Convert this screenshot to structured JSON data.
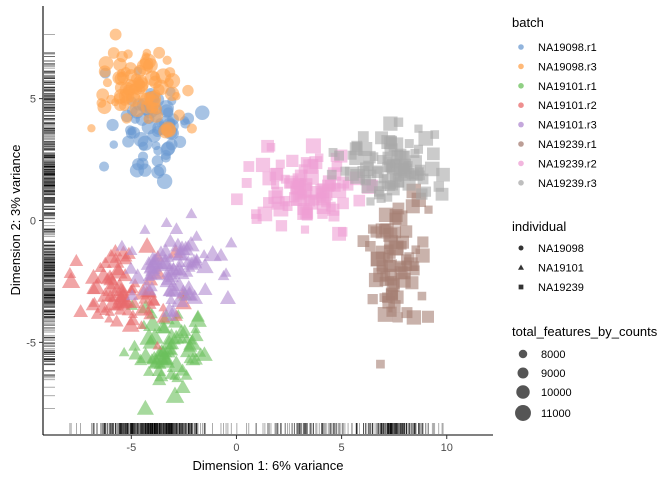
{
  "chart_data": {
    "type": "scatter",
    "xlabel": "Dimension 1: 6% variance",
    "ylabel": "Dimension 2: 3% variance",
    "xlim": [
      -9.2,
      12.2
    ],
    "ylim": [
      -8.8,
      8.8
    ],
    "xticks": [
      -5,
      0,
      5,
      10
    ],
    "yticks": [
      -5,
      0,
      5
    ],
    "rug": true,
    "legend_position": "right",
    "legends": {
      "batch": {
        "title": "batch",
        "entries": [
          {
            "label": "NA19098.r1",
            "color": "#6C9BD2"
          },
          {
            "label": "NA19098.r3",
            "color": "#FFA24B"
          },
          {
            "label": "NA19101.r1",
            "color": "#6BC05B"
          },
          {
            "label": "NA19101.r2",
            "color": "#E8696A"
          },
          {
            "label": "NA19101.r3",
            "color": "#B08AD0"
          },
          {
            "label": "NA19239.r1",
            "color": "#A57E73"
          },
          {
            "label": "NA19239.r2",
            "color": "#EE9ED3"
          },
          {
            "label": "NA19239.r3",
            "color": "#A8A8A8"
          }
        ]
      },
      "individual": {
        "title": "individual",
        "entries": [
          {
            "label": "NA19098",
            "shape": "circle"
          },
          {
            "label": "NA19101",
            "shape": "triangle"
          },
          {
            "label": "NA19239",
            "shape": "square"
          }
        ]
      },
      "size": {
        "title": "total_features_by_counts",
        "entries": [
          {
            "label": "8000",
            "value": 8000
          },
          {
            "label": "9000",
            "value": 9000
          },
          {
            "label": "10000",
            "value": 10000
          },
          {
            "label": "11000",
            "value": 11000
          }
        ]
      }
    },
    "series": [
      {
        "name": "NA19098.r1",
        "individual": "NA19098",
        "center": [
          -4.1,
          3.6
        ],
        "spread": [
          1.3,
          1.3
        ],
        "n": 70,
        "size_range": [
          8000,
          11000
        ]
      },
      {
        "name": "NA19098.r3",
        "individual": "NA19098",
        "center": [
          -4.6,
          5.4
        ],
        "spread": [
          1.2,
          1.0
        ],
        "n": 85,
        "size_range": [
          7800,
          11200
        ]
      },
      {
        "name": "NA19101.r1",
        "individual": "NA19101",
        "center": [
          -3.3,
          -5.2
        ],
        "spread": [
          1.1,
          1.2
        ],
        "n": 70,
        "size_range": [
          8000,
          11000
        ]
      },
      {
        "name": "NA19101.r2",
        "individual": "NA19101",
        "center": [
          -5.2,
          -3.0
        ],
        "spread": [
          1.6,
          1.1
        ],
        "n": 80,
        "size_range": [
          7800,
          10800
        ]
      },
      {
        "name": "NA19101.r3",
        "individual": "NA19101",
        "center": [
          -2.8,
          -2.0
        ],
        "spread": [
          1.6,
          1.0
        ],
        "n": 80,
        "size_range": [
          8000,
          11000
        ]
      },
      {
        "name": "NA19239.r1",
        "individual": "NA19239",
        "center": [
          7.6,
          -1.7
        ],
        "spread": [
          1.0,
          1.5
        ],
        "n": 75,
        "size_range": [
          8000,
          11000
        ]
      },
      {
        "name": "NA19239.r2",
        "individual": "NA19239",
        "center": [
          3.5,
          1.2
        ],
        "spread": [
          1.7,
          1.0
        ],
        "n": 90,
        "size_range": [
          8000,
          11000
        ]
      },
      {
        "name": "NA19239.r3",
        "individual": "NA19239",
        "center": [
          7.5,
          2.2
        ],
        "spread": [
          1.4,
          1.0
        ],
        "n": 90,
        "size_range": [
          8000,
          11000
        ]
      }
    ]
  }
}
